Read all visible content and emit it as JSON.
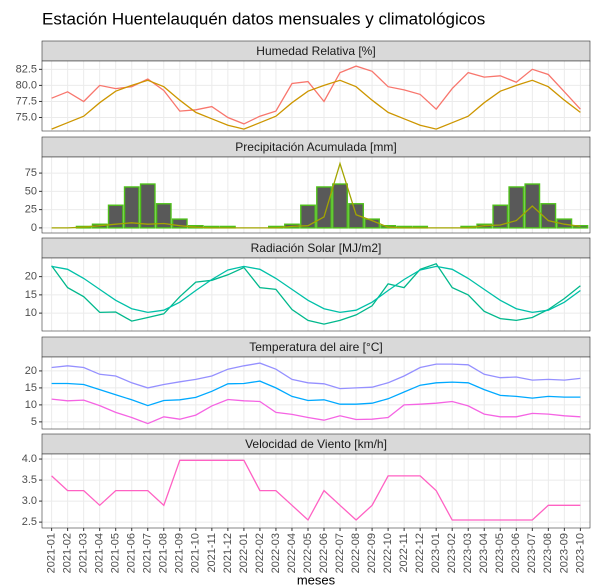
{
  "title": "Estación Huentelauquén datos mensuales y climatológicos",
  "chart_data": [
    {
      "type": "line",
      "title": "Humedad Relativa [%]",
      "ylim": [
        72.9,
        83.8
      ],
      "yticks": [
        {
          "value": 75,
          "label": "75.0"
        },
        77.5,
        {
          "value": 80,
          "label": "80.0"
        },
        82.5
      ],
      "grid": true,
      "series": [
        {
          "color": "#f8766d",
          "values": [
            78.0,
            79.0,
            77.5,
            80.0,
            79.5,
            79.8,
            81.0,
            79.2,
            76.0,
            76.2,
            76.7,
            75.0,
            74.0,
            75.2,
            76.0,
            80.3,
            80.6,
            77.5,
            82.0,
            83.0,
            82.2,
            79.8,
            79.3,
            78.6,
            76.3,
            79.5,
            82.0,
            81.3,
            81.5,
            80.5,
            82.5,
            81.7,
            79.0,
            76.3
          ]
        },
        {
          "color": "#cd9600",
          "values": [
            73.2,
            74.2,
            75.2,
            77.3,
            79.1,
            80.0,
            80.8,
            79.8,
            77.7,
            75.8,
            74.8,
            73.8,
            73.2,
            74.2,
            75.2,
            77.3,
            79.1,
            80.0,
            80.8,
            79.8,
            77.7,
            75.8,
            74.8,
            73.8,
            73.2,
            74.2,
            75.2,
            77.3,
            79.1,
            80.0,
            80.8,
            79.8,
            77.7,
            75.8
          ]
        }
      ]
    },
    {
      "type": "bar",
      "title": "Precipitación Acumulada [mm]",
      "ylim": [
        -7,
        97
      ],
      "yticks": [
        0,
        25,
        50,
        75
      ],
      "grid": true,
      "series": [
        {
          "type": "bar",
          "color": "#595959",
          "edgecolor": "#4fc11a",
          "values": [
            0,
            0,
            2,
            5,
            31,
            56,
            60,
            33,
            12,
            3,
            2,
            2,
            0,
            0,
            2,
            5,
            31,
            56,
            60,
            33,
            12,
            3,
            2,
            2,
            0,
            0,
            2,
            5,
            31,
            56,
            60,
            33,
            12,
            3
          ]
        },
        {
          "type": "line",
          "color": "#a3a500",
          "values": [
            0,
            0,
            1,
            3,
            5,
            7,
            5,
            6,
            3,
            1,
            0,
            0,
            0,
            0,
            0,
            2,
            3,
            15,
            88,
            18,
            10,
            1,
            0,
            0,
            0,
            0,
            0,
            3,
            4,
            10,
            30,
            10,
            5,
            2
          ]
        }
      ]
    },
    {
      "type": "line",
      "title": "Radiación Solar [MJ/m2]",
      "ylim": [
        5.1,
        25.1
      ],
      "yticks": [
        10,
        15,
        20
      ],
      "grid": true,
      "series": [
        {
          "color": "#00b88c",
          "values": [
            23.0,
            17.0,
            14.5,
            10.2,
            10.3,
            7.8,
            8.8,
            9.8,
            14.5,
            18.5,
            19.0,
            20.5,
            22.5,
            17.0,
            16.5,
            11.0,
            8.0,
            7.0,
            8.0,
            9.5,
            12.0,
            18.0,
            17.0,
            22.0,
            23.5,
            17.0,
            15.0,
            10.5,
            8.5,
            8.0,
            8.8,
            11.0,
            14.0,
            17.5
          ]
        },
        {
          "color": "#00c0a8",
          "values": [
            22.8,
            22.0,
            19.5,
            16.5,
            13.5,
            11.2,
            10.2,
            10.8,
            13.0,
            16.2,
            19.2,
            21.8,
            22.8,
            22.0,
            19.5,
            16.5,
            13.5,
            11.2,
            10.2,
            10.8,
            13.0,
            16.2,
            19.2,
            21.8,
            22.8,
            22.0,
            19.5,
            16.5,
            13.5,
            11.2,
            10.2,
            10.8,
            13.0,
            16.2
          ]
        }
      ]
    },
    {
      "type": "line",
      "title": "Temperatura del aire [°C]",
      "ylim": [
        2.9,
        24.1
      ],
      "yticks": [
        5,
        10,
        15,
        20
      ],
      "grid": true,
      "series": [
        {
          "color": "#9590ff",
          "values": [
            21.0,
            21.5,
            21.0,
            19.0,
            18.5,
            16.5,
            15.0,
            16.0,
            16.8,
            17.5,
            18.5,
            20.5,
            21.5,
            22.3,
            20.5,
            17.5,
            16.5,
            16.2,
            14.8,
            15.0,
            15.2,
            16.5,
            18.5,
            21.0,
            22.0,
            22.0,
            21.8,
            19.0,
            18.0,
            18.2,
            17.3,
            17.5,
            17.3,
            17.8
          ]
        },
        {
          "color": "#00a9ff",
          "values": [
            16.3,
            16.3,
            16.0,
            14.5,
            13.0,
            11.5,
            9.8,
            11.3,
            11.5,
            12.2,
            14.0,
            16.2,
            16.3,
            17.0,
            15.0,
            12.5,
            11.3,
            11.5,
            10.2,
            10.2,
            10.5,
            11.8,
            13.8,
            15.8,
            16.5,
            16.7,
            16.5,
            14.5,
            12.8,
            12.5,
            12.0,
            12.5,
            12.3,
            12.3
          ]
        },
        {
          "color": "#f564e3",
          "values": [
            11.7,
            11.2,
            11.4,
            9.8,
            7.8,
            6.3,
            4.5,
            6.5,
            5.8,
            7.0,
            9.7,
            11.6,
            11.2,
            11.0,
            7.8,
            7.2,
            6.3,
            5.5,
            6.8,
            5.7,
            5.8,
            6.3,
            10.0,
            10.2,
            10.5,
            11.0,
            9.7,
            7.3,
            6.5,
            6.5,
            7.5,
            7.3,
            6.8,
            6.5
          ]
        }
      ]
    },
    {
      "type": "line",
      "title": "Velocidad de Viento [km/h]",
      "ylim": [
        2.36,
        4.12
      ],
      "yticks": [
        2.5,
        {
          "value": 3,
          "label": "3.0"
        },
        3.5,
        {
          "value": 4,
          "label": "4.0"
        }
      ],
      "grid": true,
      "xlabel": "meses",
      "categories": [
        "2021-01",
        "2021-02",
        "2021-03",
        "2021-04",
        "2021-05",
        "2021-06",
        "2021-07",
        "2021-08",
        "2021-09",
        "2021-10",
        "2021-11",
        "2021-12",
        "2022-01",
        "2022-02",
        "2022-03",
        "2022-04",
        "2022-05",
        "2022-06",
        "2022-07",
        "2022-08",
        "2022-09",
        "2022-10",
        "2022-11",
        "2022-12",
        "2023-01",
        "2023-02",
        "2023-03",
        "2023-04",
        "2023-05",
        "2023-06",
        "2023-07",
        "2023-08",
        "2023-09",
        "2023-10"
      ],
      "series": [
        {
          "color": "#ff61c3",
          "values": [
            3.6,
            3.25,
            3.25,
            2.9,
            3.25,
            3.25,
            3.25,
            2.9,
            3.97,
            3.97,
            3.97,
            3.97,
            3.97,
            3.25,
            3.25,
            2.9,
            2.55,
            3.25,
            2.9,
            2.55,
            2.9,
            3.6,
            3.6,
            3.6,
            3.25,
            2.55,
            2.55,
            2.55,
            2.55,
            2.55,
            2.55,
            2.9,
            2.9,
            2.9
          ]
        }
      ]
    }
  ]
}
